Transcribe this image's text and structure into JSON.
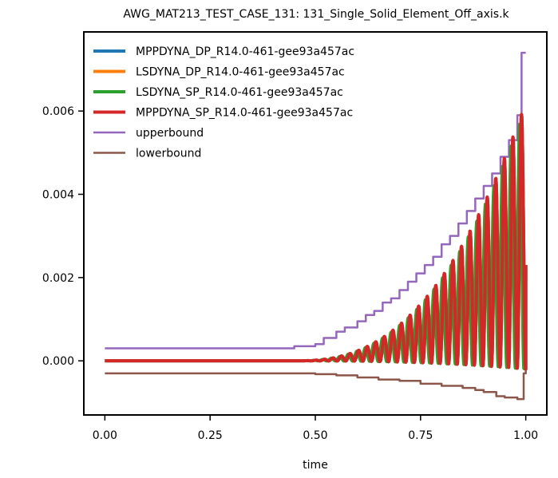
{
  "chart_data": {
    "type": "line",
    "title": "AWG_MAT213_TEST_CASE_131: 131_Single_Solid_Element_Off_axis.k",
    "xlabel": "time",
    "ylabel": "",
    "xlim": [
      -0.05,
      1.05
    ],
    "ylim": [
      -0.0013,
      0.0079
    ],
    "x_ticks": [
      "0.00",
      "0.25",
      "0.50",
      "0.75",
      "1.00"
    ],
    "x_tick_values": [
      0.0,
      0.25,
      0.5,
      0.75,
      1.0
    ],
    "y_ticks": [
      "0.000",
      "0.002",
      "0.004",
      "0.006"
    ],
    "y_tick_values": [
      0.0,
      0.002,
      0.004,
      0.006
    ],
    "grid": false,
    "legend_position": "top-left",
    "series": [
      {
        "name": "MPPDYNA_DP_R14.0-461-gee93a457ac",
        "color": "#1f77b4",
        "kind": "oscillation",
        "phase": 0.0,
        "amplitude_scale": 1.0
      },
      {
        "name": "LSDYNA_DP_R14.0-461-gee93a457ac",
        "color": "#ff7f0e",
        "kind": "oscillation",
        "phase": 0.0,
        "amplitude_scale": 1.0
      },
      {
        "name": "LSDYNA_SP_R14.0-461-gee93a457ac",
        "color": "#2ca02c",
        "kind": "oscillation",
        "phase": 1.3,
        "amplitude_scale": 0.98
      },
      {
        "name": "MPPDYNA_SP_R14.0-461-gee93a457ac",
        "color": "#d62728",
        "kind": "oscillation",
        "phase": 0.0,
        "amplitude_scale": 1.0
      },
      {
        "name": "upperbound",
        "color": "#9467bd",
        "kind": "bound",
        "x": [
          0.0,
          0.4,
          0.45,
          0.5,
          0.52,
          0.55,
          0.57,
          0.6,
          0.62,
          0.64,
          0.66,
          0.68,
          0.7,
          0.72,
          0.74,
          0.76,
          0.78,
          0.8,
          0.82,
          0.84,
          0.86,
          0.88,
          0.9,
          0.92,
          0.94,
          0.96,
          0.98,
          0.99,
          1.0
        ],
        "y": [
          0.0003,
          0.0003,
          0.00035,
          0.0004,
          0.00055,
          0.0007,
          0.0008,
          0.00095,
          0.0011,
          0.0012,
          0.0014,
          0.0015,
          0.0017,
          0.0019,
          0.0021,
          0.0023,
          0.0025,
          0.0028,
          0.003,
          0.0033,
          0.0036,
          0.0039,
          0.0042,
          0.0045,
          0.0049,
          0.0053,
          0.0059,
          0.0074,
          0.0074
        ]
      },
      {
        "name": "lowerbound",
        "color": "#8c564b",
        "kind": "bound",
        "x": [
          0.0,
          0.45,
          0.5,
          0.55,
          0.6,
          0.65,
          0.7,
          0.75,
          0.8,
          0.85,
          0.88,
          0.9,
          0.93,
          0.95,
          0.98,
          0.99,
          0.995,
          1.0
        ],
        "y": [
          -0.0003,
          -0.0003,
          -0.00032,
          -0.00035,
          -0.0004,
          -0.00045,
          -0.00048,
          -0.00055,
          -0.0006,
          -0.00065,
          -0.0007,
          -0.00075,
          -0.00085,
          -0.00088,
          -0.00092,
          -0.00092,
          -0.0003,
          0.0005
        ]
      }
    ],
    "oscillation": {
      "start": 0.45,
      "end": 1.0,
      "cycles": 27,
      "peak_end": 0.0062,
      "trough_end": -0.0002,
      "growth_power": 2.5,
      "final_value": 0.0023
    }
  }
}
